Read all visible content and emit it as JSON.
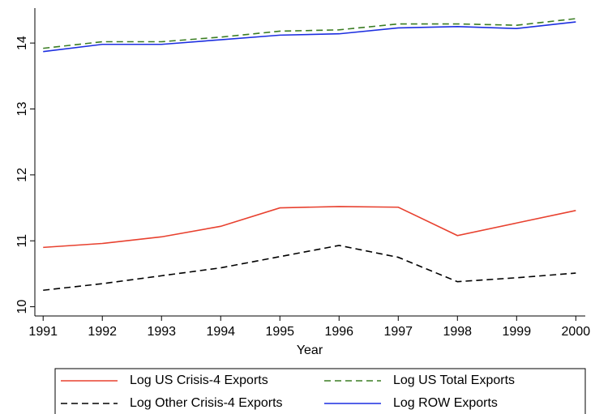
{
  "chart_data": {
    "type": "line",
    "x_label": "Year",
    "x": [
      1991,
      1992,
      1993,
      1994,
      1995,
      1996,
      1997,
      1998,
      1999,
      2000
    ],
    "series": [
      {
        "name": "Log US Crisis-4 Exports",
        "color": "#e8412f",
        "dash": false,
        "values": [
          10.9,
          10.96,
          11.06,
          11.22,
          11.5,
          11.52,
          11.51,
          11.08,
          11.27,
          11.46
        ]
      },
      {
        "name": "Log US Total Exports",
        "color": "#3a7d22",
        "dash": true,
        "values": [
          13.92,
          14.02,
          14.02,
          14.09,
          14.18,
          14.2,
          14.29,
          14.29,
          14.27,
          14.37
        ]
      },
      {
        "name": "Log Other Crisis-4 Exports",
        "color": "#000000",
        "dash": true,
        "values": [
          10.25,
          10.35,
          10.47,
          10.59,
          10.76,
          10.93,
          10.75,
          10.38,
          10.44,
          10.51
        ]
      },
      {
        "name": "Log ROW Exports",
        "color": "#1c2ee0",
        "dash": false,
        "values": [
          13.87,
          13.98,
          13.98,
          14.05,
          14.12,
          14.14,
          14.23,
          14.25,
          14.22,
          14.32
        ]
      }
    ],
    "xlim": [
      1990.86,
      2000.16
    ],
    "xticks": [
      1991,
      1992,
      1993,
      1994,
      1995,
      1996,
      1997,
      1998,
      1999,
      2000
    ],
    "ylim": [
      9.86,
      14.53
    ],
    "yticks": [
      10,
      11,
      12,
      13,
      14
    ],
    "grid": false,
    "legend": "bottom"
  }
}
